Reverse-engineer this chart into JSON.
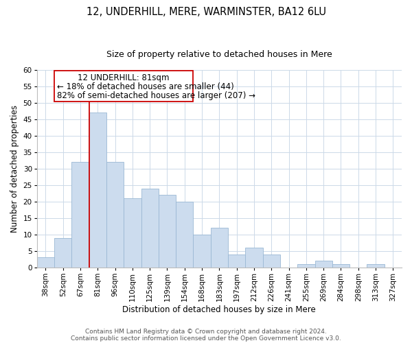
{
  "title": "12, UNDERHILL, MERE, WARMINSTER, BA12 6LU",
  "subtitle": "Size of property relative to detached houses in Mere",
  "xlabel": "Distribution of detached houses by size in Mere",
  "ylabel": "Number of detached properties",
  "bar_labels": [
    "38sqm",
    "52sqm",
    "67sqm",
    "81sqm",
    "96sqm",
    "110sqm",
    "125sqm",
    "139sqm",
    "154sqm",
    "168sqm",
    "183sqm",
    "197sqm",
    "212sqm",
    "226sqm",
    "241sqm",
    "255sqm",
    "269sqm",
    "284sqm",
    "298sqm",
    "313sqm",
    "327sqm"
  ],
  "bar_values": [
    3,
    9,
    32,
    47,
    32,
    21,
    24,
    22,
    20,
    10,
    12,
    4,
    6,
    4,
    0,
    1,
    2,
    1,
    0,
    1,
    0
  ],
  "bar_color": "#ccdcee",
  "bar_edge_color": "#9ab8d4",
  "vline_color": "#cc0000",
  "ylim": [
    0,
    60
  ],
  "yticks": [
    0,
    5,
    10,
    15,
    20,
    25,
    30,
    35,
    40,
    45,
    50,
    55,
    60
  ],
  "annotation_title": "12 UNDERHILL: 81sqm",
  "annotation_line1": "← 18% of detached houses are smaller (44)",
  "annotation_line2": "82% of semi-detached houses are larger (207) →",
  "annotation_box_color": "#ffffff",
  "annotation_box_edge": "#cc0000",
  "grid_color": "#ccd9e8",
  "footer_line1": "Contains HM Land Registry data © Crown copyright and database right 2024.",
  "footer_line2": "Contains public sector information licensed under the Open Government Licence v3.0.",
  "title_fontsize": 10.5,
  "subtitle_fontsize": 9,
  "axis_label_fontsize": 8.5,
  "tick_fontsize": 7.5,
  "annotation_fontsize": 8.5,
  "footer_fontsize": 6.5
}
